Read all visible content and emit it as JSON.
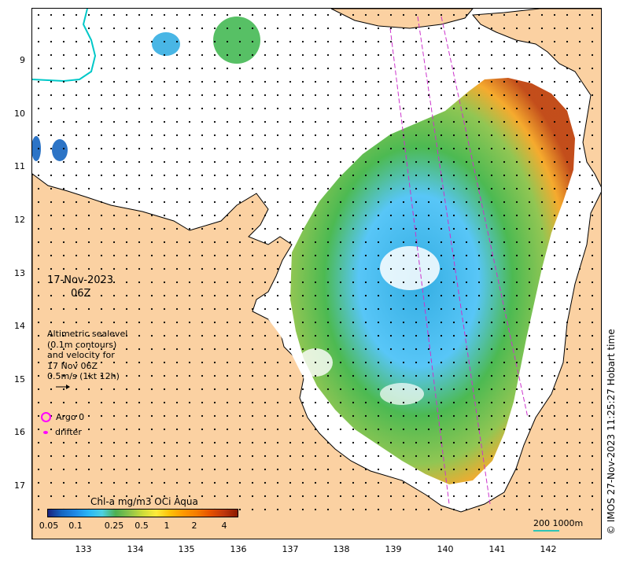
{
  "map": {
    "title_date": "17-Nov-2023",
    "title_time": "06Z",
    "sealevel_legend": [
      "Altimetric sealevel",
      "(0.1m contours)",
      "and velocity for",
      "17 Nov 06Z",
      "0.5m/s (1kt 12h)"
    ],
    "argo_label": "Argo 0",
    "drifter_label": "drifter",
    "colorbar_title": "Chl-a mg/m3 OCi Aqua",
    "colorbar_ticks": [
      "0.05",
      "0.1",
      "0.25",
      "0.5",
      "1",
      "2",
      "4"
    ],
    "scale_label": "200  1000m",
    "credit": "© IMOS 27-Nov-2023 11:25:27 Hobart time",
    "lat_ticks": [
      "9",
      "10",
      "11",
      "12",
      "13",
      "14",
      "15",
      "16",
      "17"
    ],
    "lon_ticks": [
      "133",
      "134",
      "135",
      "136",
      "137",
      "138",
      "139",
      "140",
      "141",
      "142"
    ],
    "colors": {
      "land": "#fbd1a2",
      "argo_marker": "#ff00ff",
      "track_line": "#cc33cc",
      "bathymetry_contour": "#00c8c8",
      "chl_low": "#1e3c96",
      "chl_mid": "#39b54a",
      "chl_high": "#c84614"
    },
    "colorbar_gradient": [
      "#1a237e",
      "#1565c0",
      "#1e88e5",
      "#29b6f6",
      "#4dd0e1",
      "#4caf50",
      "#8bc34a",
      "#cddc39",
      "#ffeb3b",
      "#ffc107",
      "#ff9800",
      "#f57c00",
      "#e65100",
      "#bf360c",
      "#8b1a00"
    ]
  }
}
